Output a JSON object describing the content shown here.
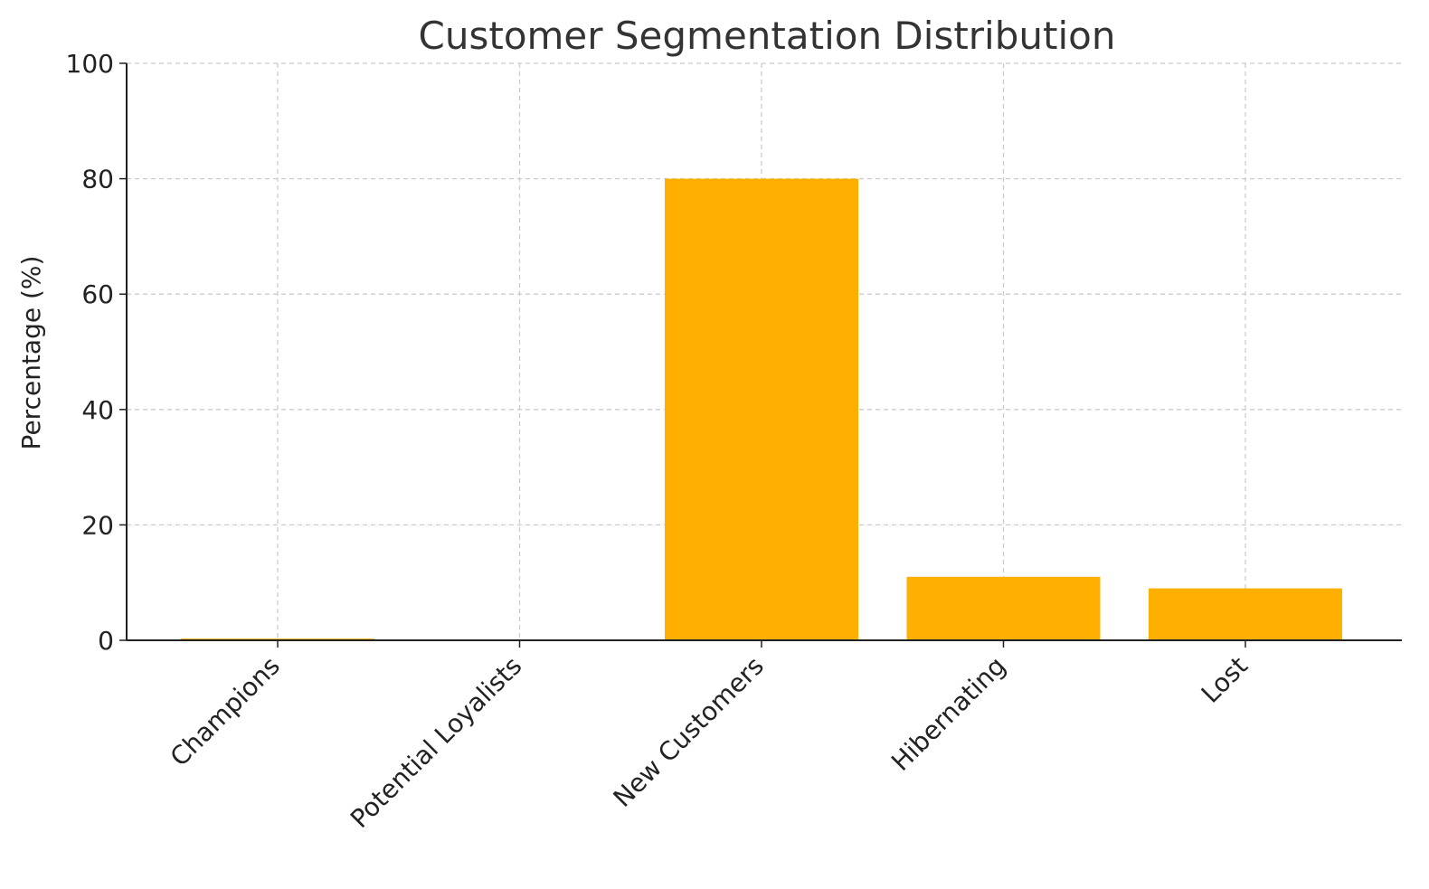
{
  "chart_data": {
    "type": "bar",
    "title": "Customer Segmentation Distribution",
    "xlabel": "",
    "ylabel": "Percentage (%)",
    "categories": [
      "Champions",
      "Potential Loyalists",
      "New Customers",
      "Hibernating",
      "Lost"
    ],
    "values": [
      0.3,
      0,
      80,
      11,
      9
    ],
    "ylim": [
      0,
      100
    ],
    "yticks": [
      0,
      20,
      40,
      60,
      80,
      100
    ],
    "grid": true,
    "legend": "none",
    "colors": {
      "bar": "#FFAF00",
      "grid": "#cccccc",
      "axis": "#222222",
      "text": "#222222",
      "title": "#333333"
    }
  }
}
